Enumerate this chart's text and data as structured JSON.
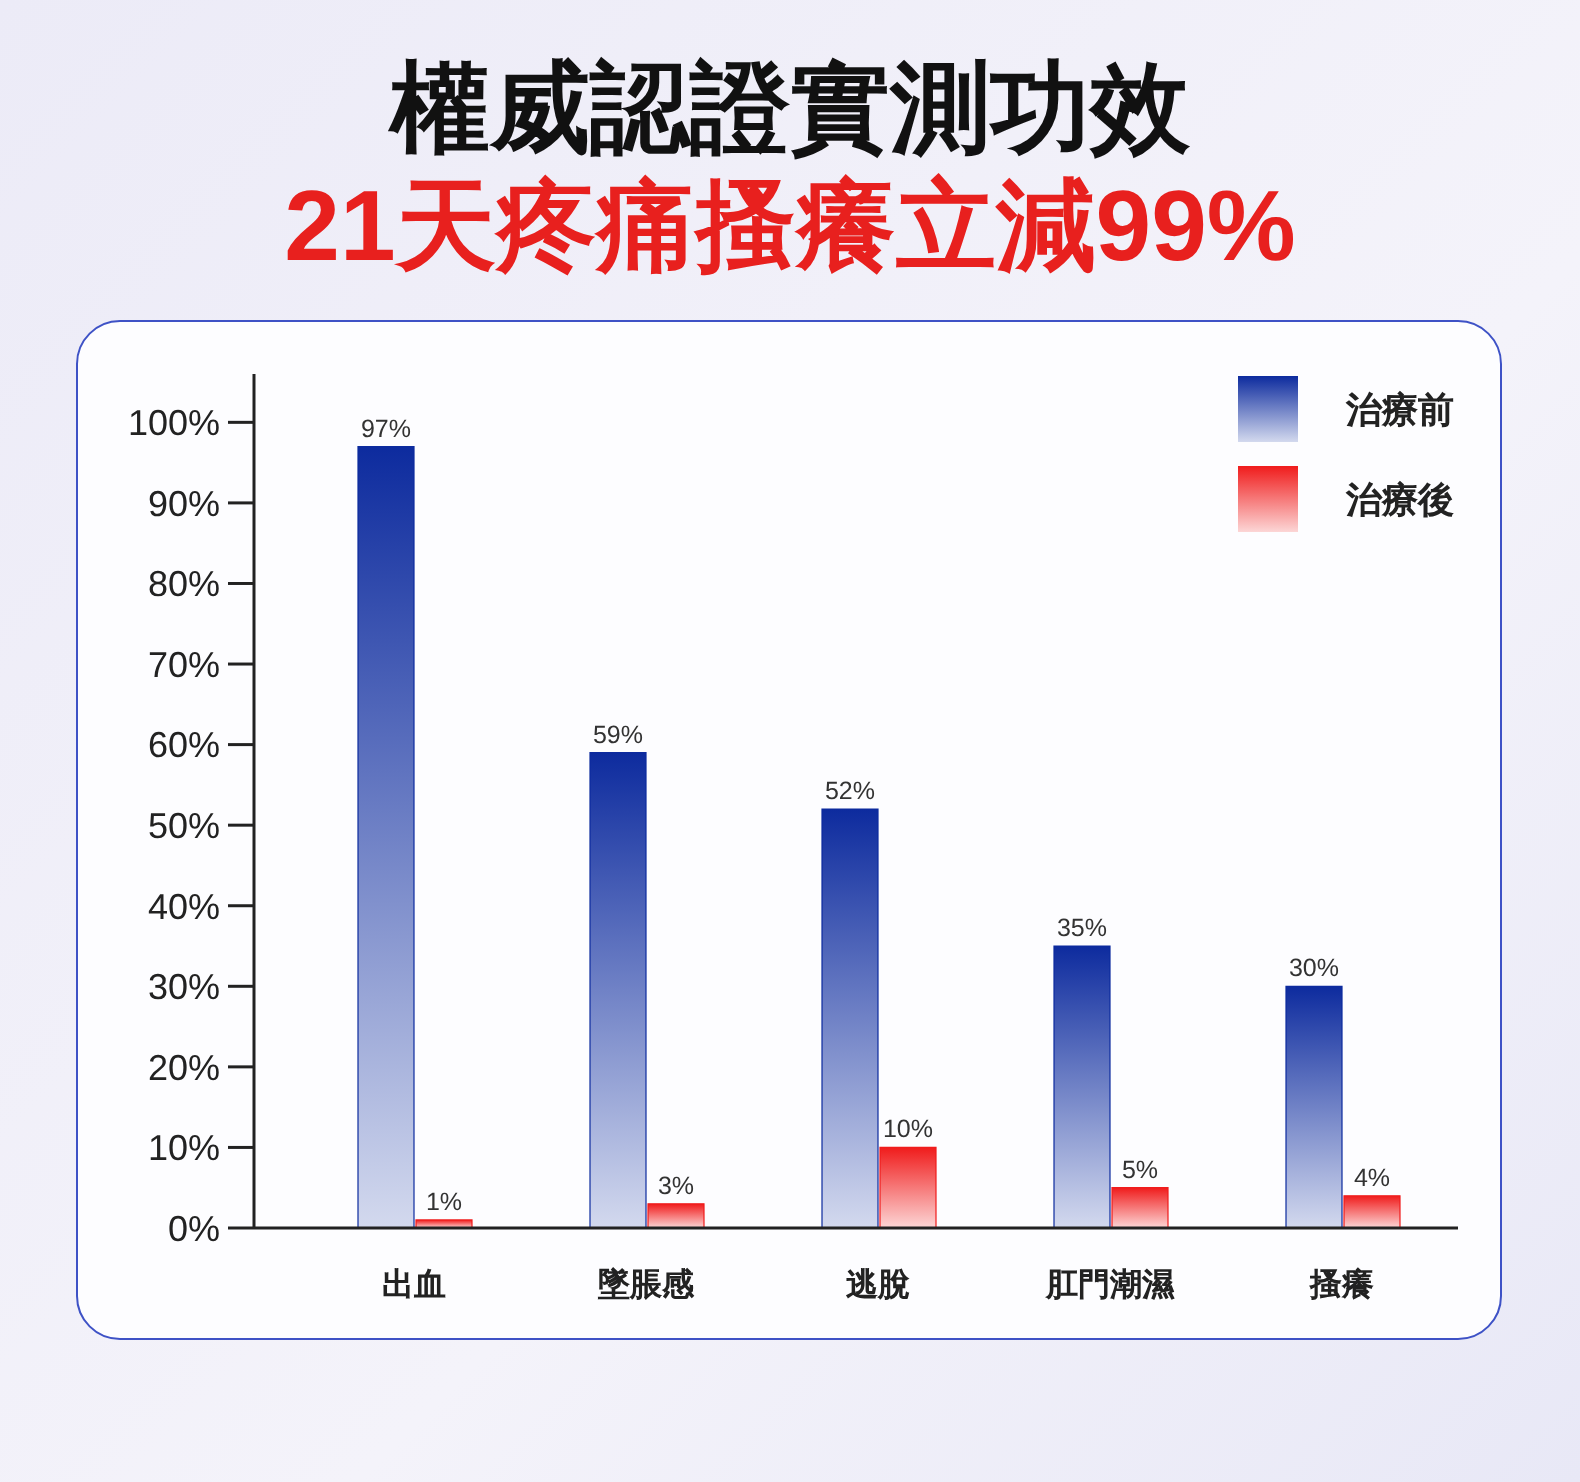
{
  "chart_data": {
    "type": "bar",
    "title": "權威認證實測功效",
    "subtitle": "21天疼痛搔癢立減99%",
    "categories": [
      "出血",
      "墜脹感",
      "逃脫",
      "肛門潮濕",
      "搔癢"
    ],
    "series": [
      {
        "name": "治療前",
        "color": "#0d2b9e",
        "values": [
          97,
          59,
          52,
          35,
          30
        ],
        "value_labels": [
          "97%",
          "59%",
          "52%",
          "35%",
          "30%"
        ]
      },
      {
        "name": "治療後",
        "color": "#f01c1c",
        "values": [
          1,
          3,
          10,
          5,
          4
        ],
        "value_labels": [
          "1%",
          "3%",
          "10%",
          "5%",
          "4%"
        ]
      }
    ],
    "ylim": [
      0,
      106
    ],
    "yticks": [
      {
        "value": 0,
        "label": "0%"
      },
      {
        "value": 10,
        "label": "10%"
      },
      {
        "value": 20,
        "label": "20%"
      },
      {
        "value": 30,
        "label": "30%"
      },
      {
        "value": 40,
        "label": "40%"
      },
      {
        "value": 50,
        "label": "50%"
      },
      {
        "value": 60,
        "label": "60%"
      },
      {
        "value": 70,
        "label": "70%"
      },
      {
        "value": 80,
        "label": "80%"
      },
      {
        "value": 90,
        "label": "90%"
      },
      {
        "value": 100,
        "label": "100%"
      }
    ],
    "legend": "top right"
  }
}
